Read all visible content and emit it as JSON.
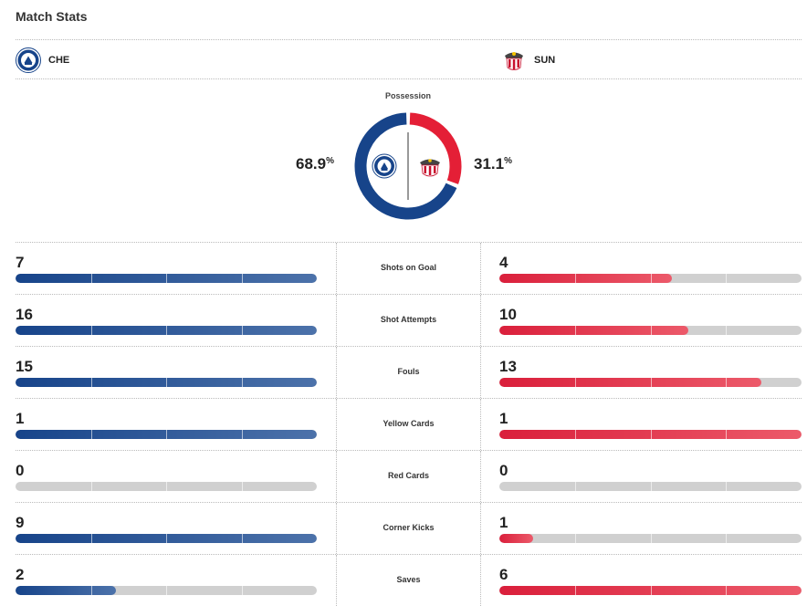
{
  "title": "Match Stats",
  "home": {
    "abbr": "CHE",
    "possession": "68.9",
    "possession_value": 68.9,
    "color": "#17448a",
    "logo_icon": "chelsea-crest-icon"
  },
  "away": {
    "abbr": "SUN",
    "possession": "31.1",
    "possession_value": 31.1,
    "color": "#e41f36",
    "logo_icon": "sunderland-crest-icon"
  },
  "possession_label": "Possession",
  "percent_symbol": "%",
  "stats": [
    {
      "label": "Shots on Goal",
      "home": "7",
      "away": "4",
      "home_fill": 1.0,
      "away_fill": 0.57
    },
    {
      "label": "Shot Attempts",
      "home": "16",
      "away": "10",
      "home_fill": 1.0,
      "away_fill": 0.625
    },
    {
      "label": "Fouls",
      "home": "15",
      "away": "13",
      "home_fill": 1.0,
      "away_fill": 0.867
    },
    {
      "label": "Yellow Cards",
      "home": "1",
      "away": "1",
      "home_fill": 1.0,
      "away_fill": 1.0
    },
    {
      "label": "Red Cards",
      "home": "0",
      "away": "0",
      "home_fill": 0,
      "away_fill": 0
    },
    {
      "label": "Corner Kicks",
      "home": "9",
      "away": "1",
      "home_fill": 1.0,
      "away_fill": 0.111
    },
    {
      "label": "Saves",
      "home": "2",
      "away": "6",
      "home_fill": 0.333,
      "away_fill": 1.0
    }
  ]
}
